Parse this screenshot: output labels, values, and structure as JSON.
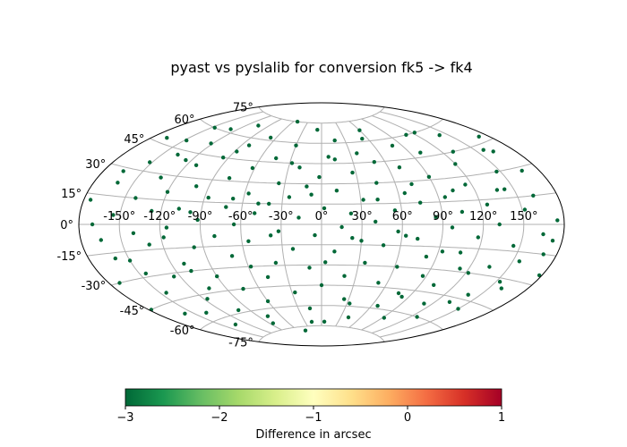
{
  "chart_data": {
    "type": "scatter",
    "projection": "aitoff",
    "title": "pyast vs pyslalib for conversion fk5 -> fk4",
    "longitude_ticks": [
      "-150°",
      "-120°",
      "-90°",
      "-60°",
      "-30°",
      "0°",
      "30°",
      "60°",
      "90°",
      "120°",
      "150°"
    ],
    "latitude_ticks": [
      "75°",
      "60°",
      "45°",
      "30°",
      "15°",
      "0°",
      "-15°",
      "-30°",
      "-45°",
      "-60°",
      "-75°"
    ],
    "grid": true,
    "legend": "none",
    "colormap": "RdYlGn_r",
    "point_color": "#006837",
    "points_value_arcsec": -3,
    "points_distribution": "approximately uniform over the sphere, all colored at the low end of the scale",
    "colorbar": {
      "label": "Difference in arcsec",
      "min": -3,
      "max": 1,
      "ticks": [
        "−3",
        "−2",
        "−1",
        "0",
        "1"
      ],
      "stops": [
        "#006837",
        "#1a9850",
        "#66bd63",
        "#a6d96a",
        "#d9ef8b",
        "#ffffbf",
        "#fee08b",
        "#fdae61",
        "#f46d43",
        "#d73027",
        "#a50026"
      ]
    },
    "points": [
      [
        -175,
        12
      ],
      [
        -172,
        -30
      ],
      [
        -168,
        48
      ],
      [
        -165,
        -8
      ],
      [
        -162,
        22
      ],
      [
        -158,
        -52
      ],
      [
        -155,
        5
      ],
      [
        -152,
        35
      ],
      [
        -150,
        -20
      ],
      [
        -147,
        60
      ],
      [
        -145,
        -40
      ],
      [
        -142,
        15
      ],
      [
        -140,
        -5
      ],
      [
        -137,
        42
      ],
      [
        -135,
        -65
      ],
      [
        -132,
        28
      ],
      [
        -130,
        -12
      ],
      [
        -127,
        8
      ],
      [
        -125,
        -32
      ],
      [
        -122,
        52
      ],
      [
        -120,
        20
      ],
      [
        -117,
        -48
      ],
      [
        -115,
        -2
      ],
      [
        -112,
        38
      ],
      [
        -110,
        -25
      ],
      [
        -107,
        10
      ],
      [
        -105,
        68
      ],
      [
        -102,
        -58
      ],
      [
        -100,
        25
      ],
      [
        -97,
        -15
      ],
      [
        -95,
        45
      ],
      [
        -92,
        3
      ],
      [
        -90,
        -35
      ],
      [
        -87,
        18
      ],
      [
        -85,
        -70
      ],
      [
        -82,
        55
      ],
      [
        -80,
        -8
      ],
      [
        -77,
        32
      ],
      [
        -75,
        -45
      ],
      [
        -72,
        12
      ],
      [
        -70,
        -22
      ],
      [
        -67,
        62
      ],
      [
        -65,
        0
      ],
      [
        -62,
        40
      ],
      [
        -60,
        -55
      ],
      [
        -57,
        22
      ],
      [
        -55,
        -12
      ],
      [
        -52,
        75
      ],
      [
        -50,
        8
      ],
      [
        -47,
        -38
      ],
      [
        -45,
        48
      ],
      [
        -42,
        -78
      ],
      [
        -40,
        15
      ],
      [
        -37,
        -28
      ],
      [
        -35,
        30
      ],
      [
        -32,
        -5
      ],
      [
        -30,
        58
      ],
      [
        -27,
        -50
      ],
      [
        -25,
        20
      ],
      [
        -22,
        -18
      ],
      [
        -20,
        42
      ],
      [
        -17,
        5
      ],
      [
        -15,
        -62
      ],
      [
        -12,
        28
      ],
      [
        -10,
        -32
      ],
      [
        -7,
        70
      ],
      [
        -5,
        -8
      ],
      [
        -2,
        35
      ],
      [
        0,
        -45
      ],
      [
        2,
        12
      ],
      [
        5,
        -72
      ],
      [
        7,
        50
      ],
      [
        10,
        -20
      ],
      [
        12,
        25
      ],
      [
        15,
        -2
      ],
      [
        17,
        62
      ],
      [
        20,
        -38
      ],
      [
        22,
        8
      ],
      [
        25,
        -55
      ],
      [
        27,
        38
      ],
      [
        30,
        -12
      ],
      [
        32,
        18
      ],
      [
        35,
        -28
      ],
      [
        37,
        52
      ],
      [
        40,
        2
      ],
      [
        42,
        -68
      ],
      [
        45,
        30
      ],
      [
        47,
        -15
      ],
      [
        50,
        45
      ],
      [
        52,
        -42
      ],
      [
        55,
        10
      ],
      [
        57,
        -5
      ],
      [
        60,
        68
      ],
      [
        62,
        -30
      ],
      [
        65,
        22
      ],
      [
        67,
        -58
      ],
      [
        70,
        40
      ],
      [
        72,
        -10
      ],
      [
        75,
        15
      ],
      [
        77,
        -48
      ],
      [
        80,
        55
      ],
      [
        82,
        -22
      ],
      [
        85,
        5
      ],
      [
        87,
        -35
      ],
      [
        90,
        32
      ],
      [
        92,
        -65
      ],
      [
        95,
        18
      ],
      [
        97,
        -2
      ],
      [
        100,
        48
      ],
      [
        102,
        -40
      ],
      [
        105,
        8
      ],
      [
        107,
        -18
      ],
      [
        110,
        60
      ],
      [
        112,
        -52
      ],
      [
        115,
        25
      ],
      [
        117,
        -8
      ],
      [
        120,
        38
      ],
      [
        122,
        -30
      ],
      [
        125,
        12
      ],
      [
        127,
        -60
      ],
      [
        130,
        45
      ],
      [
        132,
        0
      ],
      [
        135,
        -25
      ],
      [
        137,
        20
      ],
      [
        140,
        -42
      ],
      [
        142,
        55
      ],
      [
        145,
        -12
      ],
      [
        147,
        30
      ],
      [
        150,
        -50
      ],
      [
        152,
        8
      ],
      [
        155,
        -20
      ],
      [
        157,
        42
      ],
      [
        160,
        -35
      ],
      [
        162,
        15
      ],
      [
        165,
        -5
      ],
      [
        167,
        28
      ],
      [
        170,
        -15
      ],
      [
        172,
        48
      ],
      [
        175,
        2
      ],
      [
        178,
        -25
      ],
      [
        -178,
        -45
      ],
      [
        -170,
        0
      ],
      [
        -160,
        -18
      ],
      [
        -148,
        50
      ],
      [
        -138,
        -55
      ],
      [
        -128,
        62
      ],
      [
        -118,
        -8
      ],
      [
        -108,
        -30
      ],
      [
        -98,
        8
      ],
      [
        -88,
        50
      ],
      [
        -78,
        -65
      ],
      [
        -68,
        18
      ],
      [
        -58,
        -30
      ],
      [
        -48,
        15
      ],
      [
        -38,
        -8
      ],
      [
        -28,
        45
      ],
      [
        -18,
        -72
      ],
      [
        -8,
        22
      ],
      [
        3,
        -28
      ],
      [
        13,
        48
      ],
      [
        23,
        -10
      ],
      [
        33,
        -58
      ],
      [
        43,
        18
      ],
      [
        53,
        62
      ],
      [
        63,
        -8
      ],
      [
        73,
        28
      ],
      [
        83,
        -50
      ],
      [
        93,
        -18
      ],
      [
        103,
        22
      ],
      [
        113,
        -28
      ],
      [
        123,
        60
      ],
      [
        133,
        -48
      ],
      [
        143,
        20
      ],
      [
        153,
        -32
      ],
      [
        163,
        40
      ],
      [
        173,
        -8
      ],
      [
        -165,
        28
      ],
      [
        -145,
        -28
      ],
      [
        -125,
        40
      ],
      [
        -105,
        -42
      ]
    ]
  }
}
